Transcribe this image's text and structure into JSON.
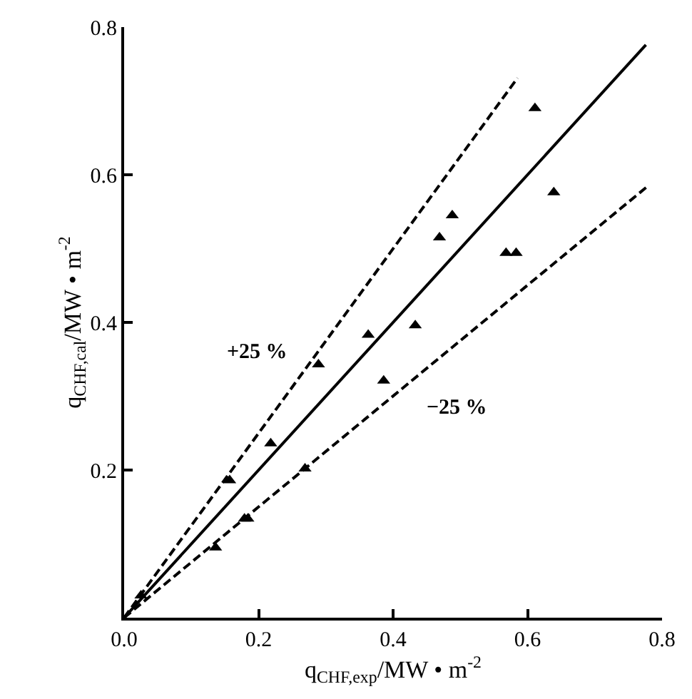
{
  "chart_data": {
    "type": "scatter",
    "xlabel": "q$_{CHF,exp}$/MW • m$^{-2}$",
    "ylabel": "q$_{CHF,cal}$/MW • m$^{-2}$",
    "xlim": [
      0,
      0.8
    ],
    "ylim": [
      0,
      0.8
    ],
    "xticks": [
      {
        "value": 0,
        "label": "0.0"
      },
      {
        "value": 0.2,
        "label": "0.2"
      },
      {
        "value": 0.4,
        "label": "0.4"
      },
      {
        "value": 0.6,
        "label": "0.6"
      },
      {
        "value": 0.8,
        "label": "0.8"
      }
    ],
    "yticks": [
      {
        "value": 0.2,
        "label": "0.2"
      },
      {
        "value": 0.4,
        "label": "0.4"
      },
      {
        "value": 0.6,
        "label": "0.6"
      },
      {
        "value": 0.8,
        "label": "0.8"
      }
    ],
    "series": [
      {
        "color": "#000000",
        "marker": "triangle",
        "x": [
          0.025,
          0.136,
          0.157,
          0.179,
          0.184,
          0.218,
          0.269,
          0.289,
          0.363,
          0.386,
          0.433,
          0.469,
          0.488,
          0.568,
          0.583,
          0.611,
          0.639
        ],
        "values": [
          0.03,
          0.095,
          0.186,
          0.134,
          0.134,
          0.236,
          0.202,
          0.343,
          0.383,
          0.321,
          0.396,
          0.515,
          0.545,
          0.494,
          0.494,
          0.69,
          0.576
        ]
      },
      {
        "type": "line",
        "color": "#000000",
        "marker": "none",
        "line_style": "solid",
        "x": [
          0,
          0.776
        ],
        "values": [
          0,
          0.776
        ]
      },
      {
        "type": "line",
        "color": "#000000",
        "marker": "none",
        "line_style": "dashed",
        "x": [
          0,
          0.585
        ],
        "values": [
          0,
          0.731
        ]
      },
      {
        "type": "line",
        "color": "#000000",
        "marker": "none",
        "line_style": "dashed",
        "x": [
          0,
          0.778
        ],
        "values": [
          0,
          0.584
        ]
      }
    ],
    "annotations": [
      "+25 %",
      "−25 %"
    ]
  }
}
